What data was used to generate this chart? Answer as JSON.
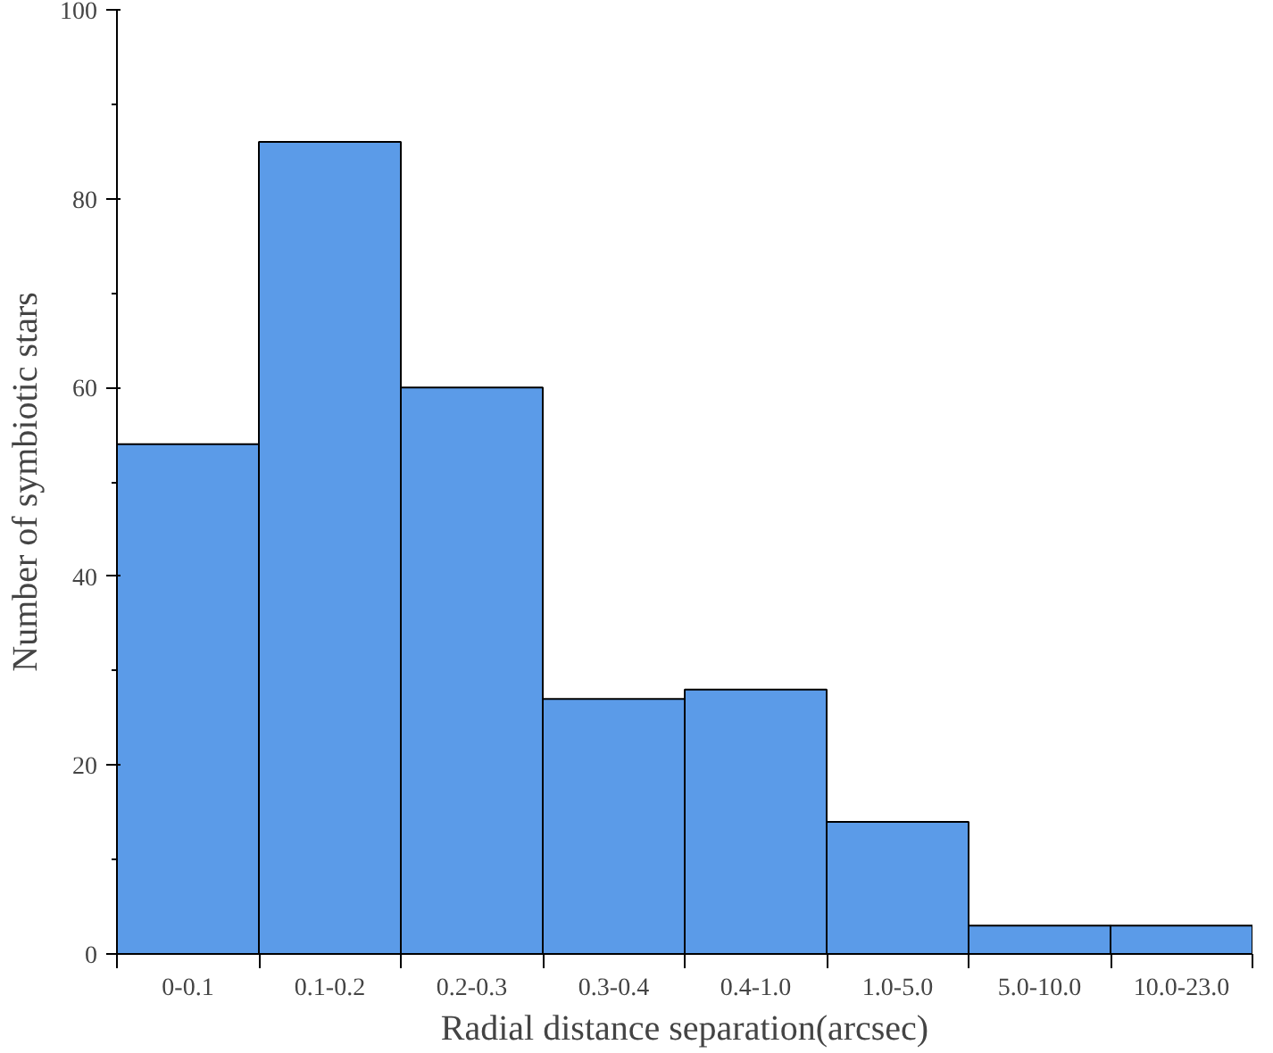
{
  "chart_data": {
    "type": "bar",
    "xlabel": "Radial distance separation(arcsec)",
    "ylabel": "Number of symbiotic stars",
    "categories": [
      "0-0.1",
      "0.1-0.2",
      "0.2-0.3",
      "0.3-0.4",
      "0.4-1.0",
      "1.0-5.0",
      "5.0-10.0",
      "10.0-23.0"
    ],
    "values": [
      54,
      86,
      60,
      27,
      28,
      14,
      3,
      3
    ],
    "color": "#5b9be8",
    "ylim": [
      0,
      100
    ],
    "yticks": [
      0,
      20,
      40,
      60,
      80,
      100
    ],
    "grid": false
  }
}
